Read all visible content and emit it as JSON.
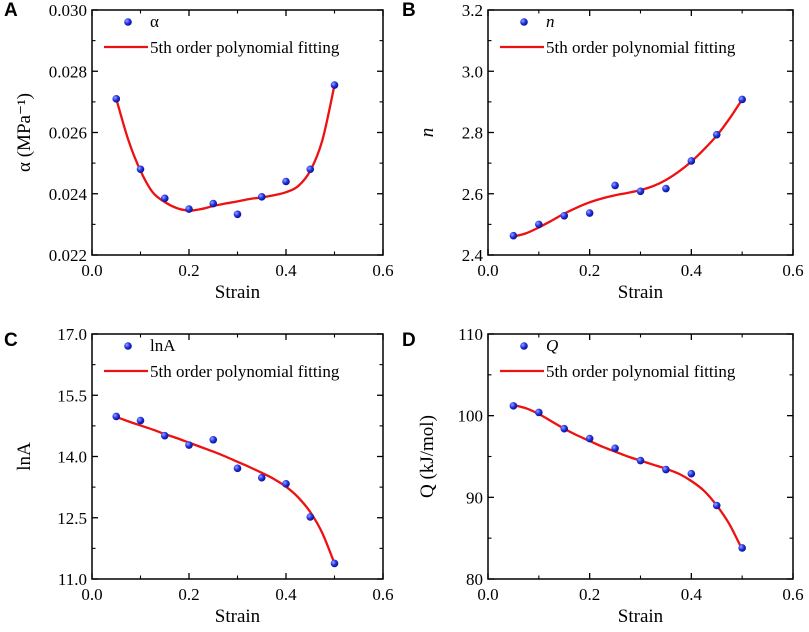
{
  "chart_data": [
    {
      "panel": "A",
      "type": "scatter",
      "xlabel": "Strain",
      "ylabel": "α (MPa⁻¹)",
      "xlim": [
        0.0,
        0.6
      ],
      "ylim": [
        0.022,
        0.03
      ],
      "xticks": [
        "0.0",
        "0.2",
        "0.4",
        "0.6"
      ],
      "yticks": [
        "0.022",
        "0.024",
        "0.026",
        "0.028",
        "0.030"
      ],
      "legend": {
        "points": "α",
        "fit": "5th order polynomial fitting"
      },
      "legend_italic": false,
      "points": {
        "x": [
          0.05,
          0.1,
          0.15,
          0.2,
          0.25,
          0.3,
          0.35,
          0.4,
          0.45,
          0.5
        ],
        "y": [
          0.0271,
          0.0248,
          0.02385,
          0.0235,
          0.02368,
          0.02333,
          0.0239,
          0.0244,
          0.0248,
          0.02755
        ]
      },
      "fit": {
        "x": [
          0.05,
          0.075,
          0.1,
          0.125,
          0.15,
          0.175,
          0.2,
          0.225,
          0.25,
          0.275,
          0.3,
          0.325,
          0.35,
          0.375,
          0.4,
          0.425,
          0.45,
          0.475,
          0.5
        ],
        "y": [
          0.0271,
          0.02575,
          0.02475,
          0.02405,
          0.02373,
          0.02353,
          0.02345,
          0.0235,
          0.0236,
          0.02368,
          0.02375,
          0.02383,
          0.02388,
          0.02395,
          0.02405,
          0.02425,
          0.02475,
          0.02575,
          0.02755
        ]
      }
    },
    {
      "panel": "B",
      "type": "scatter",
      "xlabel": "Strain",
      "ylabel": "n",
      "xlim": [
        0.0,
        0.6
      ],
      "ylim": [
        2.4,
        3.2
      ],
      "xticks": [
        "0.0",
        "0.2",
        "0.4",
        "0.6"
      ],
      "yticks": [
        "2.4",
        "2.6",
        "2.8",
        "3.0",
        "3.2"
      ],
      "legend": {
        "points": "n",
        "fit": "5th order polynomial fitting"
      },
      "legend_italic": true,
      "points": {
        "x": [
          0.05,
          0.1,
          0.15,
          0.2,
          0.25,
          0.3,
          0.35,
          0.4,
          0.45,
          0.5
        ],
        "y": [
          2.463,
          2.5,
          2.528,
          2.537,
          2.627,
          2.608,
          2.617,
          2.707,
          2.793,
          2.908
        ]
      },
      "fit": {
        "x": [
          0.05,
          0.075,
          0.1,
          0.125,
          0.15,
          0.175,
          0.2,
          0.225,
          0.25,
          0.275,
          0.3,
          0.325,
          0.35,
          0.375,
          0.4,
          0.425,
          0.45,
          0.475,
          0.5
        ],
        "y": [
          2.46,
          2.471,
          2.49,
          2.512,
          2.535,
          2.555,
          2.572,
          2.585,
          2.595,
          2.603,
          2.612,
          2.625,
          2.645,
          2.672,
          2.705,
          2.745,
          2.79,
          2.845,
          2.908
        ]
      }
    },
    {
      "panel": "C",
      "type": "scatter",
      "xlabel": "Strain",
      "ylabel": "lnA",
      "xlim": [
        0.0,
        0.6
      ],
      "ylim": [
        11.0,
        17.0
      ],
      "xticks": [
        "0.0",
        "0.2",
        "0.4",
        "0.6"
      ],
      "yticks": [
        "11.0",
        "12.5",
        "14.0",
        "15.5",
        "17.0"
      ],
      "legend": {
        "points": "lnA",
        "fit": "5th order polynomial fitting"
      },
      "legend_italic": false,
      "points": {
        "x": [
          0.05,
          0.1,
          0.15,
          0.2,
          0.25,
          0.3,
          0.35,
          0.4,
          0.45,
          0.5
        ],
        "y": [
          14.98,
          14.88,
          14.51,
          14.28,
          14.41,
          13.71,
          13.48,
          13.33,
          12.52,
          11.38
        ]
      },
      "fit": {
        "x": [
          0.05,
          0.075,
          0.1,
          0.125,
          0.15,
          0.175,
          0.2,
          0.225,
          0.25,
          0.275,
          0.3,
          0.325,
          0.35,
          0.375,
          0.4,
          0.425,
          0.45,
          0.475,
          0.5
        ],
        "y": [
          14.97,
          14.86,
          14.76,
          14.66,
          14.55,
          14.45,
          14.34,
          14.23,
          14.12,
          14.0,
          13.87,
          13.74,
          13.6,
          13.45,
          13.26,
          13.0,
          12.64,
          12.12,
          11.38
        ]
      }
    },
    {
      "panel": "D",
      "type": "scatter",
      "xlabel": "Strain",
      "ylabel": "Q (kJ/mol)",
      "xlim": [
        0.0,
        0.6
      ],
      "ylim": [
        80,
        110
      ],
      "xticks": [
        "0.0",
        "0.2",
        "0.4",
        "0.6"
      ],
      "yticks": [
        "80",
        "90",
        "100",
        "110"
      ],
      "legend": {
        "points": "Q",
        "fit": "5th order polynomial fitting"
      },
      "legend_italic": true,
      "points": {
        "x": [
          0.05,
          0.1,
          0.15,
          0.2,
          0.25,
          0.3,
          0.35,
          0.4,
          0.45,
          0.5
        ],
        "y": [
          101.2,
          100.4,
          98.4,
          97.2,
          96.0,
          94.5,
          93.4,
          92.9,
          89.0,
          83.8
        ]
      },
      "fit": {
        "x": [
          0.05,
          0.075,
          0.1,
          0.125,
          0.15,
          0.175,
          0.2,
          0.225,
          0.25,
          0.275,
          0.3,
          0.325,
          0.35,
          0.375,
          0.4,
          0.425,
          0.45,
          0.475,
          0.5
        ],
        "y": [
          101.3,
          100.9,
          100.2,
          99.3,
          98.4,
          97.6,
          96.9,
          96.2,
          95.6,
          95.0,
          94.5,
          94.0,
          93.5,
          92.9,
          92.0,
          90.8,
          89.0,
          86.7,
          83.6
        ]
      }
    }
  ],
  "colors": {
    "points": "#2233e6",
    "fit": "#ee1111",
    "axis": "#000000"
  }
}
